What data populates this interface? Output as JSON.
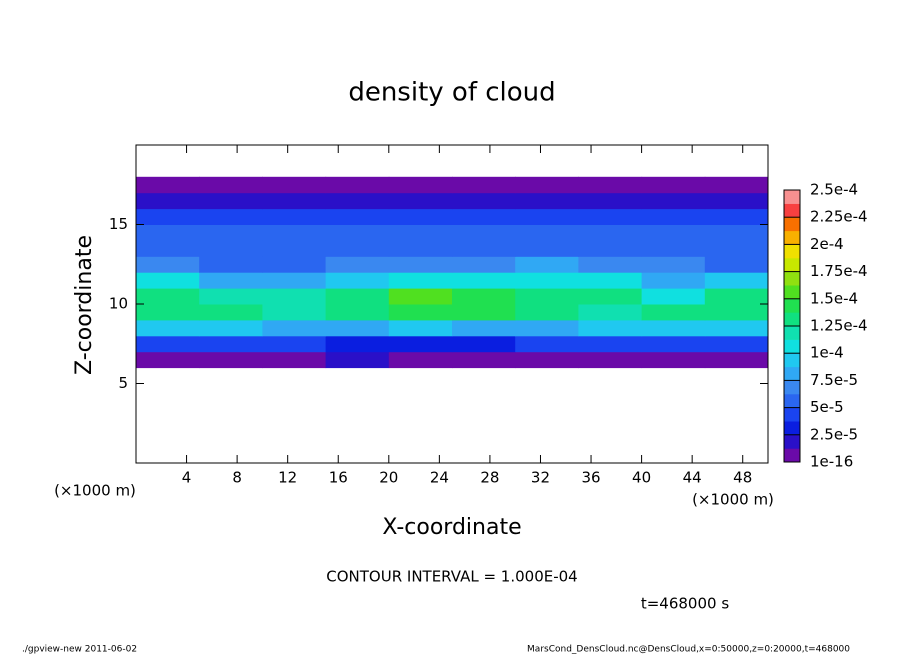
{
  "chart_data": {
    "type": "heatmap",
    "title": "density of cloud",
    "xlabel": "X-coordinate",
    "ylabel": "Z-coordinate",
    "xunit": "(×1000 m)",
    "yunit": "(×1000 m)",
    "contour_label": "CONTOUR INTERVAL = 1.000E-04",
    "time_label": "t=468000 s",
    "footer_left": "./gpview-new  2011-06-02",
    "footer_right": "MarsCond_DensCloud.nc@DensCloud,x=0:50000,z=0:20000,t=468000",
    "xlim": [
      0,
      50
    ],
    "ylim": [
      0,
      20
    ],
    "xticks": [
      4,
      8,
      12,
      16,
      20,
      24,
      28,
      32,
      36,
      40,
      44,
      48
    ],
    "yticks": [
      5,
      10,
      15
    ],
    "x": [
      2.5,
      7.5,
      12.5,
      17.5,
      22.5,
      27.5,
      32.5,
      37.5,
      42.5,
      47.5
    ],
    "z": [
      6.5,
      7.5,
      8.5,
      9.5,
      10.5,
      11.5,
      12.5,
      13.5,
      14.5,
      15.5,
      16.5,
      17.5
    ],
    "values": [
      [
        1.2e-05,
        1e-05,
        1.1e-05,
        1.3e-05,
        1e-05,
        1.1e-05,
        9e-06,
        1e-05,
        1.1e-05,
        1.2e-05
      ],
      [
        4e-05,
        3.8e-05,
        4.2e-05,
        3.6e-05,
        3.4e-05,
        3.6e-05,
        3.9e-05,
        4.1e-05,
        4.4e-05,
        4.2e-05
      ],
      [
        9.2e-05,
        9e-05,
        8.6e-05,
        8.2e-05,
        8.8e-05,
        8.6e-05,
        8.4e-05,
        8.8e-05,
        9.4e-05,
        9.6e-05
      ],
      [
        0.000132,
        0.00013,
        0.000124,
        0.000128,
        0.000142,
        0.000138,
        0.000126,
        0.000122,
        0.00013,
        0.000136
      ],
      [
        0.00013,
        0.000122,
        0.000118,
        0.000134,
        0.000152,
        0.000148,
        0.000136,
        0.000128,
        0.000112,
        0.00013
      ],
      [
        0.000102,
        8.4e-05,
        8e-05,
        9.8e-05,
        0.00011,
        0.000112,
        0.000106,
        0.000104,
        8.2e-05,
        9.6e-05
      ],
      [
        6.6e-05,
        6e-05,
        6.2e-05,
        6.8e-05,
        7.4e-05,
        7.2e-05,
        7.6e-05,
        7.2e-05,
        6.4e-05,
        6.2e-05
      ],
      [
        5.6e-05,
        5.4e-05,
        5.8e-05,
        5.6e-05,
        5.8e-05,
        6e-05,
        6.2e-05,
        6e-05,
        5.6e-05,
        5.4e-05
      ],
      [
        5.2e-05,
        5e-05,
        5.2e-05,
        5.4e-05,
        5e-05,
        5.2e-05,
        5.4e-05,
        5.2e-05,
        5e-05,
        5e-05
      ],
      [
        4.2e-05,
        4e-05,
        4.4e-05,
        4.2e-05,
        4e-05,
        4.2e-05,
        4.4e-05,
        4e-05,
        4.2e-05,
        4e-05
      ],
      [
        2.4e-05,
        2.2e-05,
        2.3e-05,
        2.1e-05,
        2.2e-05,
        2.4e-05,
        2.2e-05,
        2.3e-05,
        2.2e-05,
        2.4e-05
      ],
      [
        5e-06,
        4e-06,
        6e-06,
        5e-06,
        6e-06,
        5e-06,
        4e-06,
        5e-06,
        5e-06,
        4e-06
      ]
    ],
    "levels": [
      {
        "value": 1e-16,
        "label": "1e-16"
      },
      {
        "value": 2.5e-05,
        "label": "2.5e-5"
      },
      {
        "value": 5e-05,
        "label": "5e-5"
      },
      {
        "value": 7.5e-05,
        "label": "7.5e-5"
      },
      {
        "value": 0.0001,
        "label": "1e-4"
      },
      {
        "value": 0.000125,
        "label": "1.25e-4"
      },
      {
        "value": 0.00015,
        "label": "1.5e-4"
      },
      {
        "value": 0.000175,
        "label": "1.75e-4"
      },
      {
        "value": 0.0002,
        "label": "2e-4"
      },
      {
        "value": 0.000225,
        "label": "2.25e-4"
      },
      {
        "value": 0.00025,
        "label": "2.5e-4"
      }
    ],
    "colors": [
      "#6a0aa8",
      "#2a10c8",
      "#0a1ee0",
      "#1a44f0",
      "#2a66f0",
      "#3a88f0",
      "#30a8f4",
      "#20c8f0",
      "#10e0e0",
      "#10e0b0",
      "#10e080",
      "#20e050",
      "#50e020",
      "#90e010",
      "#c8e800",
      "#f0e000",
      "#f8b000",
      "#f87000",
      "#f84040",
      "#f89090"
    ]
  }
}
